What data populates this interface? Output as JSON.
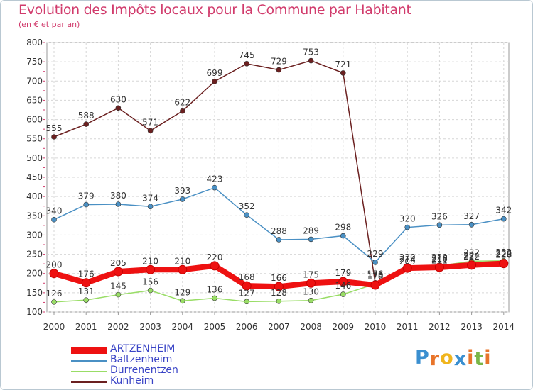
{
  "header": {
    "title": "Evolution des Impôts locaux pour la Commune par Habitant",
    "subtitle": "(en € et par an)"
  },
  "branding": {
    "letters": [
      "P",
      "r",
      "o",
      "x",
      "i",
      "t",
      "i"
    ],
    "colors": [
      "#3a8fd0",
      "#e8742a",
      "#f0b51d",
      "#3a8fd0",
      "#e8742a",
      "#7ab648",
      "#e8742a"
    ]
  },
  "chart_data": {
    "type": "line",
    "x": [
      "2000",
      "2001",
      "2002",
      "2003",
      "2004",
      "2005",
      "2006",
      "2007",
      "2008",
      "2009",
      "2010",
      "2011",
      "2012",
      "2013",
      "2014"
    ],
    "ylim": [
      100,
      800
    ],
    "yticks": [
      "100",
      "150",
      "200",
      "250",
      "300",
      "350",
      "400",
      "450",
      "500",
      "550",
      "600",
      "650",
      "700",
      "750",
      "800"
    ],
    "grid": true,
    "legend_position": "bottom-left",
    "series": [
      {
        "name": "ARTZENHEIM",
        "color": "#ee1111",
        "values": [
          200,
          176,
          205,
          210,
          210,
          220,
          168,
          166,
          175,
          179,
          170,
          214,
          216,
          222,
          226
        ]
      },
      {
        "name": "Baltzenheim",
        "color": "#4a90c4",
        "values": [
          340,
          379,
          380,
          374,
          393,
          423,
          352,
          288,
          289,
          298,
          229,
          320,
          326,
          327,
          342
        ]
      },
      {
        "name": "Durrenentzen",
        "color": "#99dd66",
        "values": [
          126,
          131,
          145,
          156,
          129,
          136,
          127,
          128,
          130,
          146,
          173,
          209,
          220,
          232,
          233
        ]
      },
      {
        "name": "Kunheim",
        "color": "#6b2020",
        "values": [
          555,
          588,
          630,
          571,
          622,
          699,
          745,
          729,
          753,
          721,
          176,
          220,
          211,
          224,
          229
        ]
      }
    ]
  }
}
